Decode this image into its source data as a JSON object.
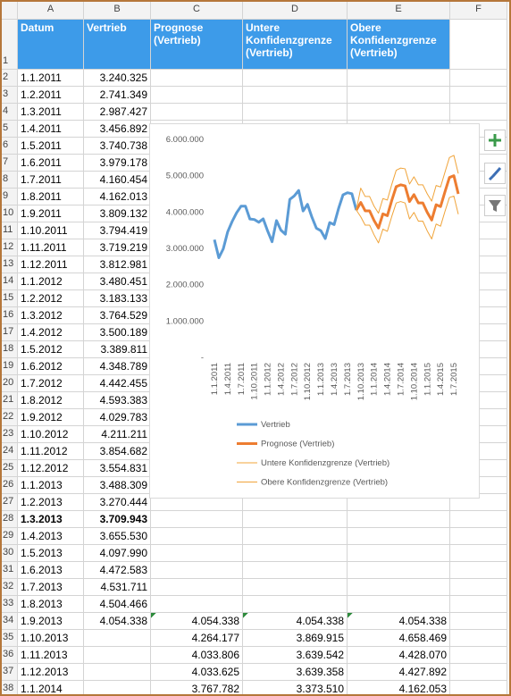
{
  "sheet": {
    "columns": [
      "A",
      "B",
      "C",
      "D",
      "E",
      "F"
    ],
    "rows": [
      {
        "label": "1",
        "header": true,
        "cells": [
          "Datum",
          "Vertrieb",
          "Prognose (Vertrieb)",
          "Untere Konfidenzgrenze (Vertrieb)",
          "Obere Konfidenzgrenze (Vertrieb)"
        ]
      },
      {
        "label": "2",
        "cells": [
          "1.1.2011",
          "3.240.325"
        ]
      },
      {
        "label": "3",
        "cells": [
          "1.2.2011",
          "2.741.349"
        ]
      },
      {
        "label": "4",
        "cells": [
          "1.3.2011",
          "2.987.427"
        ]
      },
      {
        "label": "5",
        "cells": [
          "1.4.2011",
          "3.456.892"
        ]
      },
      {
        "label": "6",
        "cells": [
          "1.5.2011",
          "3.740.738"
        ]
      },
      {
        "label": "7",
        "cells": [
          "1.6.2011",
          "3.979.178"
        ]
      },
      {
        "label": "8",
        "cells": [
          "1.7.2011",
          "4.160.454"
        ]
      },
      {
        "label": "9",
        "cells": [
          "1.8.2011",
          "4.162.013"
        ]
      },
      {
        "label": "10",
        "cells": [
          "1.9.2011",
          "3.809.132"
        ]
      },
      {
        "label": "11",
        "cells": [
          "1.10.2011",
          "3.794.419"
        ]
      },
      {
        "label": "12",
        "cells": [
          "1.11.2011",
          "3.719.219"
        ]
      },
      {
        "label": "13",
        "cells": [
          "1.12.2011",
          "3.812.981"
        ]
      },
      {
        "label": "14",
        "cells": [
          "1.1.2012",
          "3.480.451"
        ]
      },
      {
        "label": "15",
        "cells": [
          "1.2.2012",
          "3.183.133"
        ]
      },
      {
        "label": "16",
        "cells": [
          "1.3.2012",
          "3.764.529"
        ]
      },
      {
        "label": "17",
        "cells": [
          "1.4.2012",
          "3.500.189"
        ]
      },
      {
        "label": "18",
        "cells": [
          "1.5.2012",
          "3.389.811"
        ]
      },
      {
        "label": "19",
        "cells": [
          "1.6.2012",
          "4.348.789"
        ]
      },
      {
        "label": "20",
        "cells": [
          "1.7.2012",
          "4.442.455"
        ]
      },
      {
        "label": "21",
        "cells": [
          "1.8.2012",
          "4.593.383"
        ]
      },
      {
        "label": "22",
        "cells": [
          "1.9.2012",
          "4.029.783"
        ]
      },
      {
        "label": "23",
        "cells": [
          "1.10.2012",
          "4.211.211"
        ]
      },
      {
        "label": "24",
        "cells": [
          "1.11.2012",
          "3.854.682"
        ]
      },
      {
        "label": "25",
        "cells": [
          "1.12.2012",
          "3.554.831"
        ]
      },
      {
        "label": "26",
        "cells": [
          "1.1.2013",
          "3.488.309"
        ]
      },
      {
        "label": "27",
        "cells": [
          "1.2.2013",
          "3.270.444"
        ]
      },
      {
        "label": "28",
        "bold": true,
        "cells": [
          "1.3.2013",
          "3.709.943"
        ]
      },
      {
        "label": "29",
        "cells": [
          "1.4.2013",
          "3.655.530"
        ]
      },
      {
        "label": "30",
        "cells": [
          "1.5.2013",
          "4.097.990"
        ]
      },
      {
        "label": "31",
        "cells": [
          "1.6.2013",
          "4.472.583"
        ]
      },
      {
        "label": "32",
        "cells": [
          "1.7.2013",
          "4.531.711"
        ]
      },
      {
        "label": "33",
        "cells": [
          "1.8.2013",
          "4.504.466"
        ]
      },
      {
        "label": "34",
        "cells": [
          "1.9.2013",
          "4.054.338",
          "4.054.338",
          "4.054.338",
          "4.054.338"
        ]
      },
      {
        "label": "35",
        "cells": [
          "1.10.2013",
          "",
          "4.264.177",
          "3.869.915",
          "4.658.469"
        ]
      },
      {
        "label": "36",
        "cells": [
          "1.11.2013",
          "",
          "4.033.806",
          "3.639.542",
          "4.428.070"
        ]
      },
      {
        "label": "37",
        "cells": [
          "1.12.2013",
          "",
          "4.033.625",
          "3.639.358",
          "4.427.892"
        ]
      },
      {
        "label": "38",
        "cells": [
          "1.1.2014",
          "",
          "3.767.782",
          "3.373.510",
          "4.162.053"
        ]
      }
    ]
  },
  "chart_data": {
    "type": "line",
    "categories": [
      "1.1.2011",
      null,
      null,
      "1.4.2011",
      null,
      null,
      "1.7.2011",
      null,
      null,
      "1.10.2011",
      null,
      null,
      "1.1.2012",
      null,
      null,
      "1.4.2012",
      null,
      null,
      "1.7.2012",
      null,
      null,
      "1.10.2012",
      null,
      null,
      "1.1.2013",
      null,
      null,
      "1.4.2013",
      null,
      null,
      "1.7.2013",
      null,
      null,
      "1.10.2013",
      null,
      null,
      "1.1.2014",
      null,
      null,
      "1.4.2014",
      null,
      null,
      "1.7.2014",
      null,
      null,
      "1.10.2014",
      null,
      null,
      "1.1.2015",
      null,
      null,
      "1.4.2015",
      null,
      null,
      "1.7.2015",
      null
    ],
    "ylim": [
      0,
      6000000
    ],
    "yticks": [
      {
        "value": 0,
        "label": "-"
      },
      {
        "value": 1000000,
        "label": "1.000.000"
      },
      {
        "value": 2000000,
        "label": "2.000.000"
      },
      {
        "value": 3000000,
        "label": "3.000.000"
      },
      {
        "value": 4000000,
        "label": "4.000.000"
      },
      {
        "value": 5000000,
        "label": "5.000.000"
      },
      {
        "value": 6000000,
        "label": "6.000.000"
      }
    ],
    "series": [
      {
        "name": "Vertrieb",
        "color": "#5b9bd5",
        "width": 3,
        "values": [
          3240325,
          2741349,
          2987427,
          3456892,
          3740738,
          3979178,
          4160454,
          4162013,
          3809132,
          3794419,
          3719219,
          3812981,
          3480451,
          3183133,
          3764529,
          3500189,
          3389811,
          4348789,
          4442455,
          4593383,
          4029783,
          4211211,
          3854682,
          3554831,
          3488309,
          3270444,
          3709943,
          3655530,
          4097990,
          4472583,
          4531711,
          4504466,
          4054338,
          null,
          null,
          null,
          null,
          null,
          null,
          null,
          null,
          null,
          null,
          null,
          null,
          null,
          null,
          null,
          null,
          null,
          null,
          null,
          null,
          null,
          null,
          null
        ]
      },
      {
        "name": "Prognose (Vertrieb)",
        "color": "#ed7d31",
        "width": 3,
        "values": [
          null,
          null,
          null,
          null,
          null,
          null,
          null,
          null,
          null,
          null,
          null,
          null,
          null,
          null,
          null,
          null,
          null,
          null,
          null,
          null,
          null,
          null,
          null,
          null,
          null,
          null,
          null,
          null,
          null,
          null,
          null,
          null,
          4054338,
          4264177,
          4033806,
          4033625,
          3767782,
          3560000,
          3950000,
          3900000,
          4320000,
          4700000,
          4750000,
          4720000,
          4290000,
          4480000,
          4250000,
          4250000,
          3990000,
          3780000,
          4200000,
          4150000,
          4560000,
          4950000,
          5000000,
          4500000
        ]
      },
      {
        "name": "Untere Konfidenzgrenze (Vertrieb)",
        "color": "#f0a43a",
        "width": 1,
        "values": [
          null,
          null,
          null,
          null,
          null,
          null,
          null,
          null,
          null,
          null,
          null,
          null,
          null,
          null,
          null,
          null,
          null,
          null,
          null,
          null,
          null,
          null,
          null,
          null,
          null,
          null,
          null,
          null,
          null,
          null,
          null,
          null,
          4054338,
          3869915,
          3639542,
          3639358,
          3373510,
          3150000,
          3530000,
          3470000,
          3880000,
          4250000,
          4290000,
          4250000,
          3810000,
          3990000,
          3750000,
          3750000,
          3480000,
          3260000,
          3670000,
          3610000,
          4020000,
          4400000,
          4440000,
          3940000
        ]
      },
      {
        "name": "Obere Konfidenzgrenze (Vertrieb)",
        "color": "#f0a43a",
        "width": 1,
        "values": [
          null,
          null,
          null,
          null,
          null,
          null,
          null,
          null,
          null,
          null,
          null,
          null,
          null,
          null,
          null,
          null,
          null,
          null,
          null,
          null,
          null,
          null,
          null,
          null,
          null,
          null,
          null,
          null,
          null,
          null,
          null,
          null,
          4054338,
          4658469,
          4428070,
          4427892,
          4162053,
          3970000,
          4370000,
          4330000,
          4760000,
          5150000,
          5210000,
          5190000,
          4770000,
          4970000,
          4750000,
          4750000,
          4500000,
          4300000,
          4730000,
          4690000,
          5100000,
          5500000,
          5560000,
          5060000
        ]
      }
    ]
  }
}
